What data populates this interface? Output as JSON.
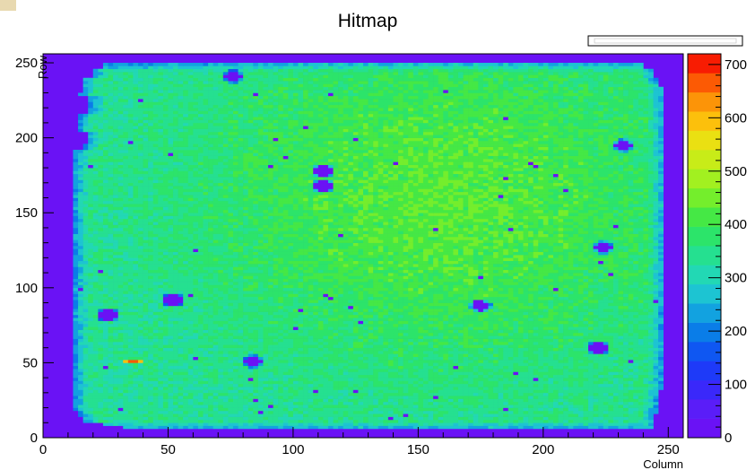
{
  "chart_data": {
    "type": "heatmap",
    "title": "Hitmap",
    "xlabel": "Column",
    "ylabel": "Row",
    "xlim": [
      0,
      256
    ],
    "ylim": [
      0,
      256
    ],
    "x_ticks": [
      0,
      50,
      100,
      150,
      200,
      250
    ],
    "y_ticks": [
      0,
      50,
      100,
      150,
      200,
      250
    ],
    "colorbar": {
      "range": [
        0,
        720
      ],
      "ticks": [
        0,
        100,
        200,
        300,
        400,
        500,
        600,
        700
      ]
    },
    "background_value": 20,
    "active_region": {
      "x_range": [
        10,
        250
      ],
      "y_range": [
        5,
        250
      ],
      "typical_value": 330,
      "peak_value": 430,
      "peak_center": [
        160,
        160
      ]
    },
    "hotspots": [
      {
        "x": 36,
        "y": 51,
        "value": 700
      }
    ],
    "holes": [
      {
        "x": 26,
        "y": 82
      },
      {
        "x": 52,
        "y": 92
      },
      {
        "x": 76,
        "y": 241
      },
      {
        "x": 84,
        "y": 51
      },
      {
        "x": 112,
        "y": 168
      },
      {
        "x": 112,
        "y": 178
      },
      {
        "x": 175,
        "y": 88
      },
      {
        "x": 222,
        "y": 60
      },
      {
        "x": 224,
        "y": 127
      },
      {
        "x": 232,
        "y": 195
      }
    ]
  }
}
